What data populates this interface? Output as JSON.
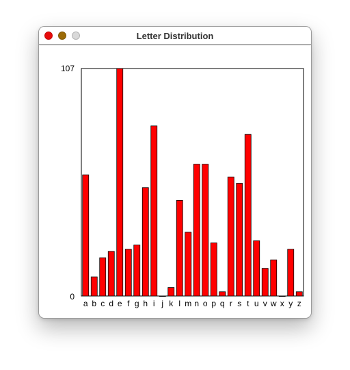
{
  "window": {
    "title": "Letter Distribution"
  },
  "colors": {
    "bar_fill": "#ff0000",
    "bar_stroke": "#000000",
    "close_button": "#e80b0b",
    "minimize_button": "#9c6b06",
    "zoom_button": "#d9d9d9"
  },
  "chart_data": {
    "type": "bar",
    "categories": [
      "a",
      "b",
      "c",
      "d",
      "e",
      "f",
      "g",
      "h",
      "i",
      "j",
      "k",
      "l",
      "m",
      "n",
      "o",
      "p",
      "q",
      "r",
      "s",
      "t",
      "u",
      "v",
      "w",
      "x",
      "y",
      "z"
    ],
    "values": [
      57,
      9,
      18,
      21,
      107,
      22,
      24,
      51,
      80,
      0,
      4,
      45,
      30,
      62,
      62,
      25,
      2,
      56,
      53,
      76,
      26,
      13,
      17,
      0,
      22,
      2
    ],
    "ylim": [
      0,
      107
    ],
    "ytick_labels": [
      "0",
      "107"
    ],
    "grid": false,
    "legend": "none"
  }
}
